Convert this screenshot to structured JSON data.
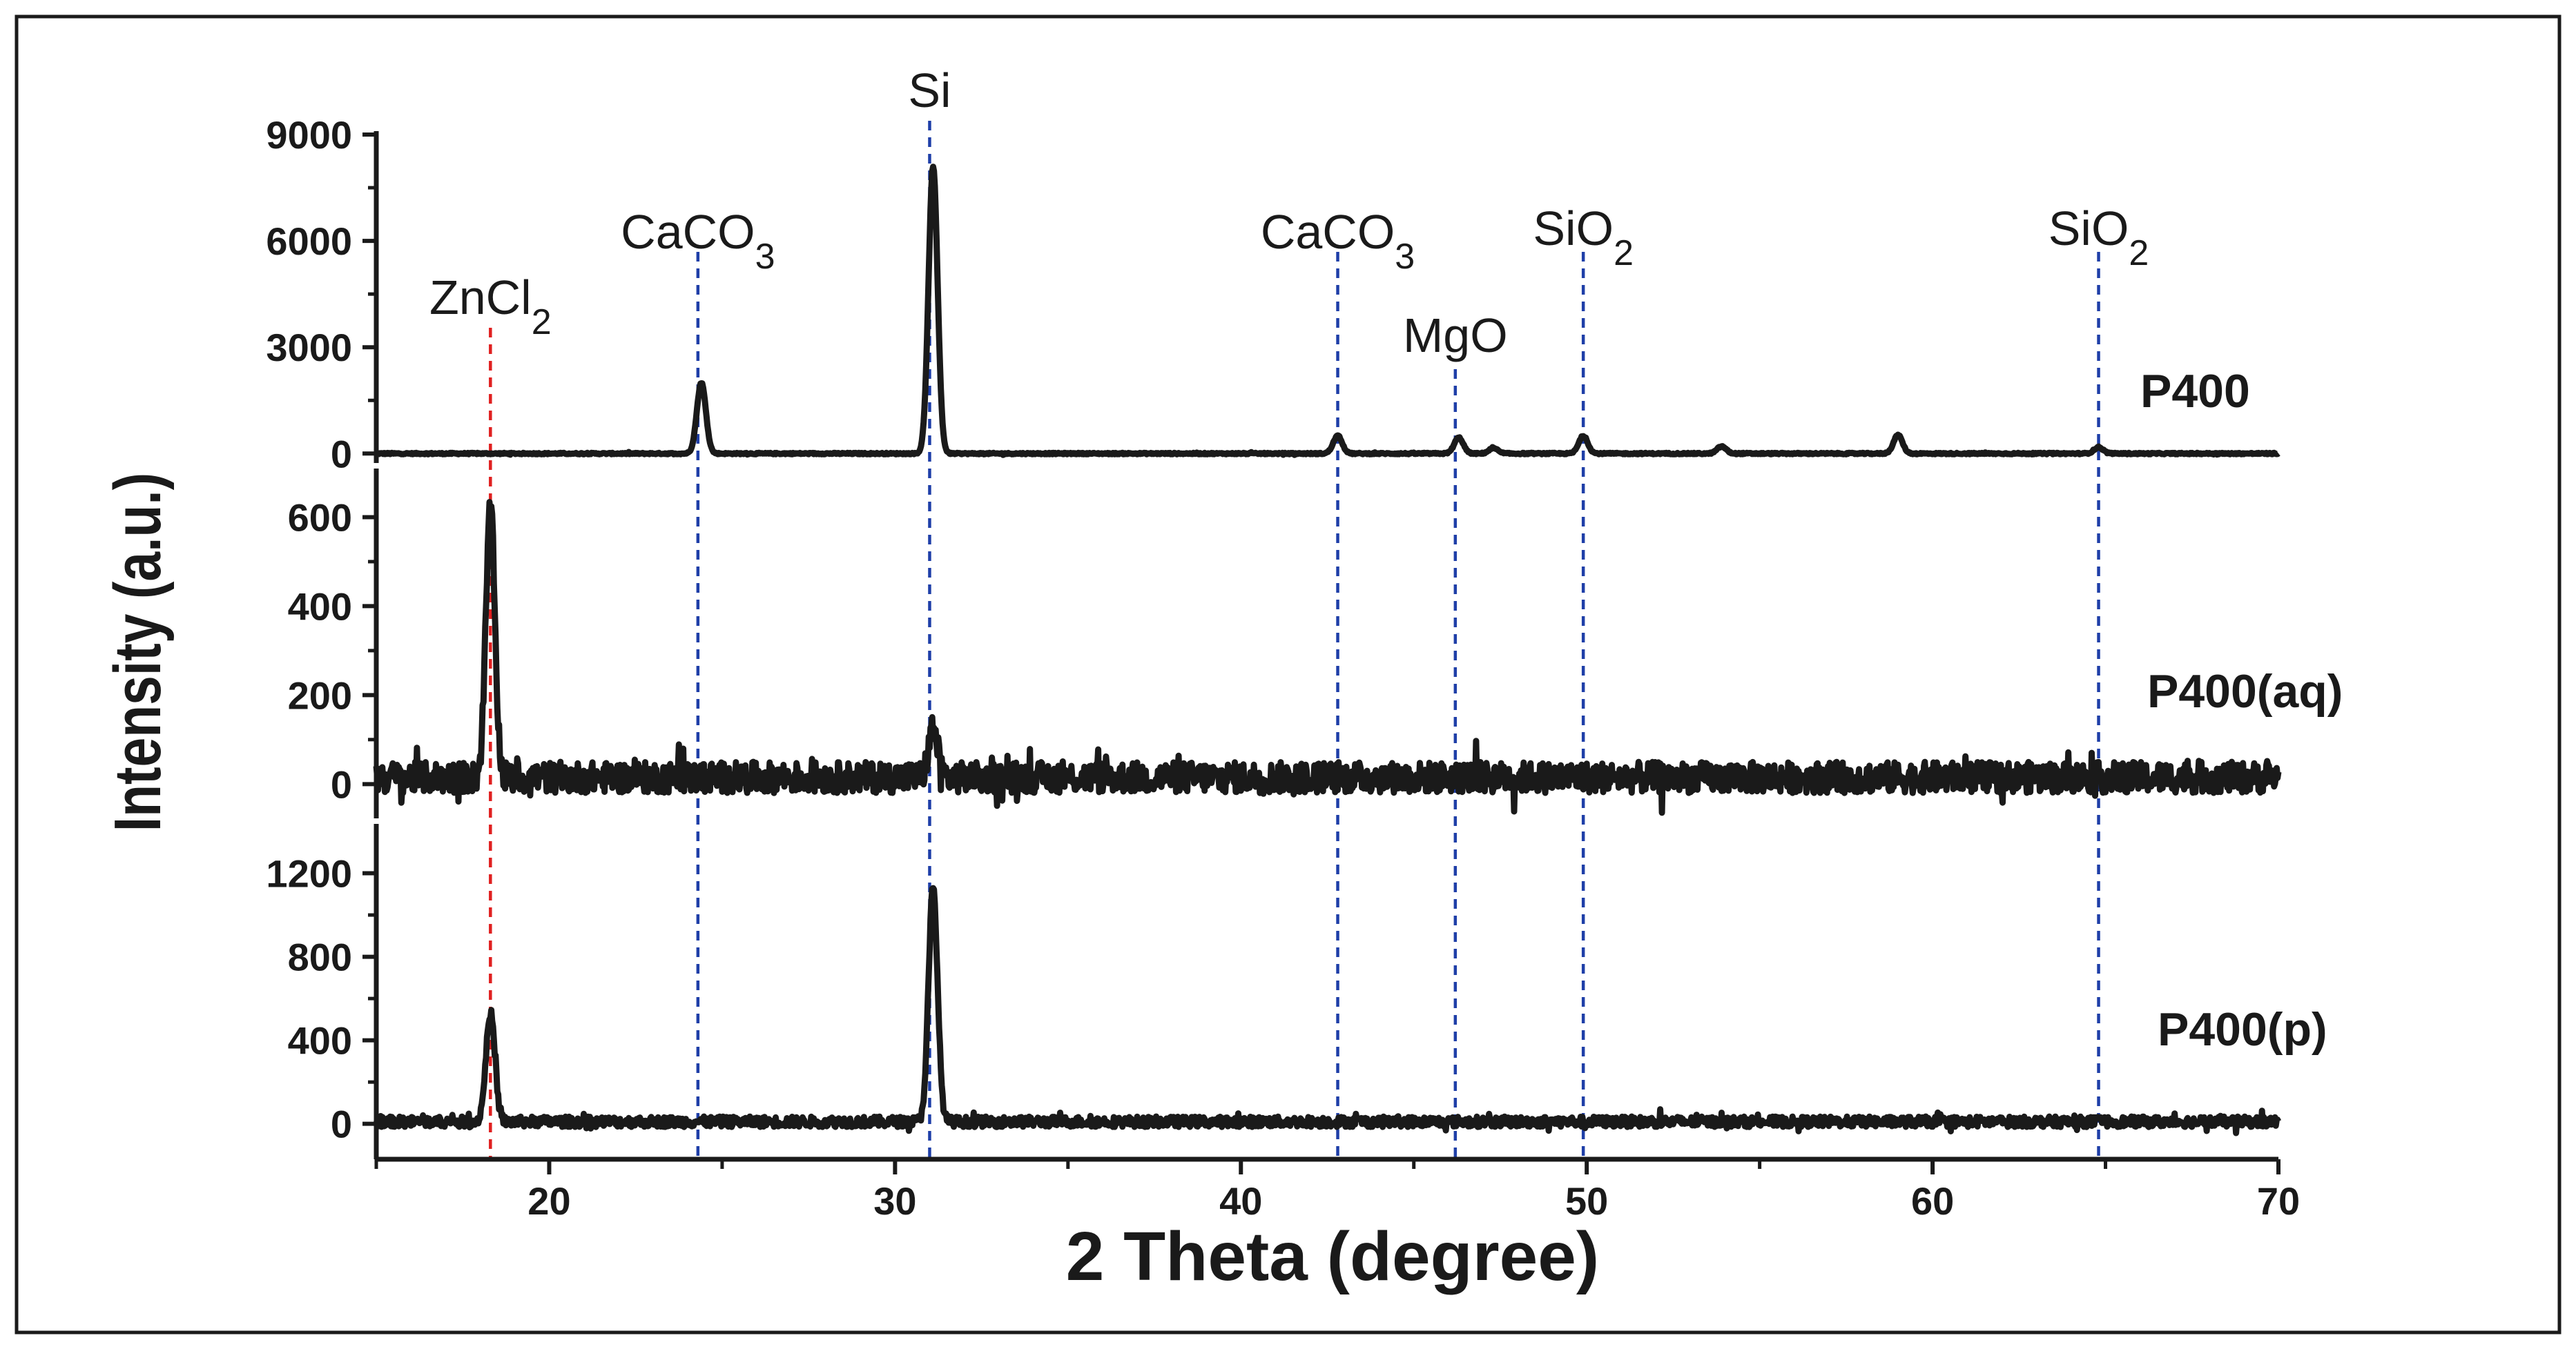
{
  "colors": {
    "trace": "#1a1a1a",
    "frame": "#1a1a1a",
    "ref_blue": "#1f3fa8",
    "ref_red": "#e02020"
  },
  "chart_data": {
    "type": "line",
    "xlabel": "2 Theta (degree)",
    "ylabel": "Intensity (a.u.)",
    "xlim": [
      15,
      70
    ],
    "x_ticks": [
      20,
      30,
      40,
      50,
      60,
      70
    ],
    "x_tick_labels": [
      "20",
      "30",
      "40",
      "50",
      "60",
      "70"
    ],
    "grid": false,
    "panels": [
      {
        "name": "P400",
        "ylim": [
          -150,
          9000
        ],
        "y_ticks": [
          0,
          3000,
          6000,
          9000
        ],
        "y_tick_labels": [
          "0",
          "3000",
          "6000",
          "9000"
        ],
        "baseline": 0,
        "noise": 20,
        "peaks": [
          {
            "x": 24.4,
            "y": 2000
          },
          {
            "x": 31.1,
            "y": 8100
          },
          {
            "x": 42.8,
            "y": 500
          },
          {
            "x": 46.3,
            "y": 450
          },
          {
            "x": 47.3,
            "y": 150
          },
          {
            "x": 49.9,
            "y": 500
          },
          {
            "x": 53.9,
            "y": 200
          },
          {
            "x": 59.0,
            "y": 520
          },
          {
            "x": 64.8,
            "y": 180
          }
        ]
      },
      {
        "name": "P400(aq)",
        "ylim": [
          -60,
          700
        ],
        "y_ticks": [
          0,
          200,
          400,
          600
        ],
        "y_tick_labels": [
          "0",
          "200",
          "400",
          "600"
        ],
        "baseline": 15,
        "noise": 35,
        "peaks": [
          {
            "x": 18.3,
            "y": 600
          },
          {
            "x": 31.1,
            "y": 110
          }
        ]
      },
      {
        "name": "P400(p)",
        "ylim": [
          -120,
          1400
        ],
        "y_ticks": [
          0,
          400,
          800,
          1200
        ],
        "y_tick_labels": [
          "0",
          "400",
          "800",
          "1200"
        ],
        "baseline": 10,
        "noise": 25,
        "peaks": [
          {
            "x": 18.3,
            "y": 520
          },
          {
            "x": 31.1,
            "y": 1120
          }
        ]
      }
    ],
    "reference_lines": [
      {
        "x": 18.3,
        "label": "ZnCl",
        "sub": "2",
        "color": "red"
      },
      {
        "x": 24.3,
        "label": "CaCO",
        "sub": "3",
        "color": "blue"
      },
      {
        "x": 31.0,
        "label": "Si",
        "sub": "",
        "color": "blue"
      },
      {
        "x": 42.8,
        "label": "CaCO",
        "sub": "3",
        "color": "blue"
      },
      {
        "x": 46.2,
        "label": "MgO",
        "sub": "",
        "color": "blue"
      },
      {
        "x": 49.9,
        "label": "SiO",
        "sub": "2",
        "color": "blue"
      },
      {
        "x": 64.8,
        "label": "SiO",
        "sub": "2",
        "color": "blue"
      }
    ]
  }
}
